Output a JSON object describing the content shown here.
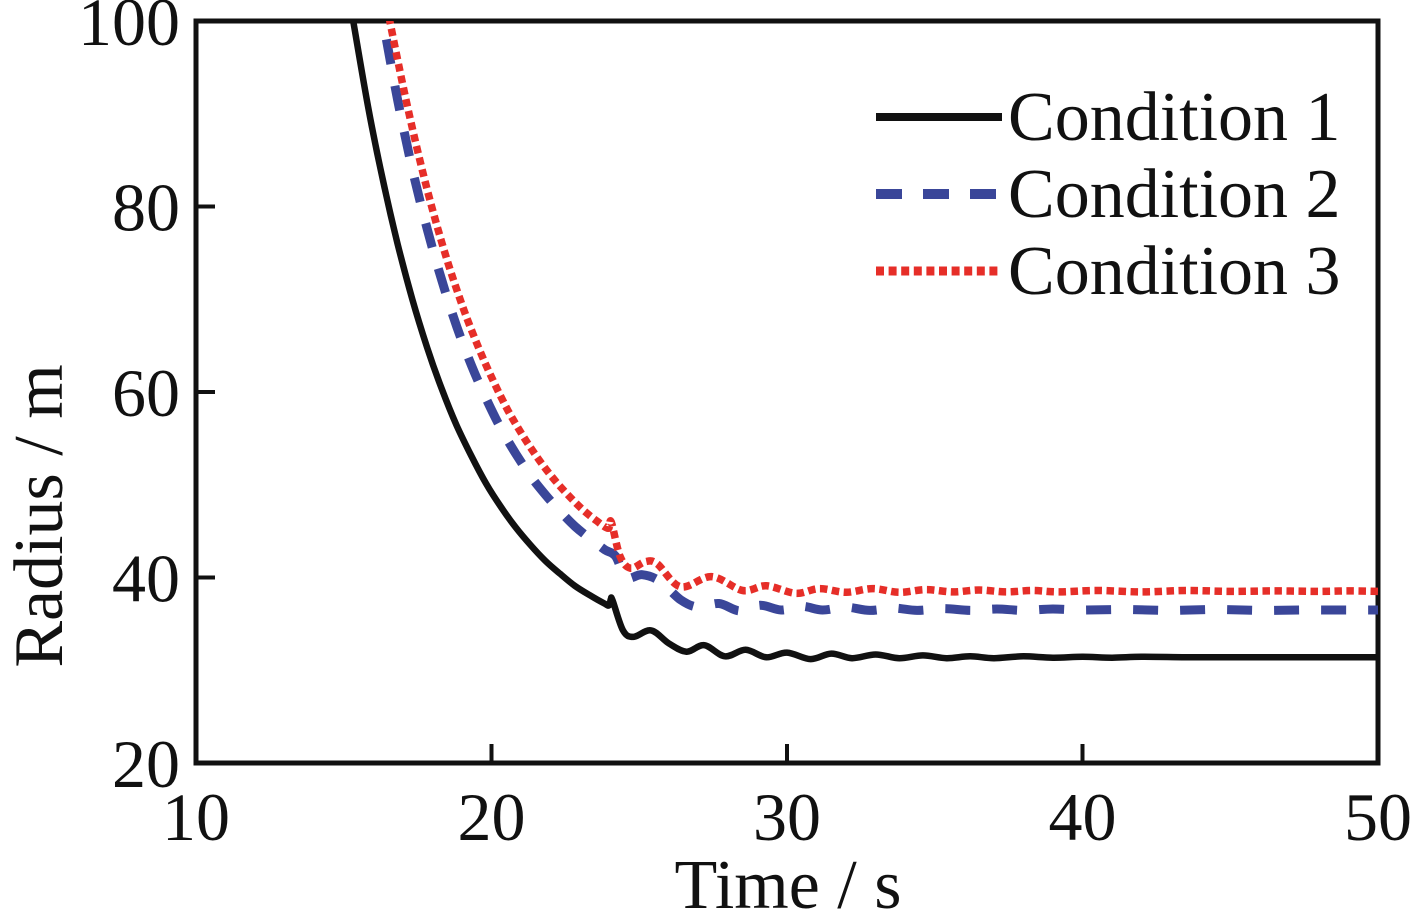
{
  "chart_data": {
    "type": "line",
    "title": "",
    "xlabel": "Time / s",
    "ylabel": "Radius / m",
    "xlim": [
      10,
      50
    ],
    "ylim": [
      20,
      100
    ],
    "xticks": [
      10,
      20,
      30,
      40,
      50
    ],
    "yticks": [
      20,
      40,
      60,
      80,
      100
    ],
    "grid": false,
    "legend_position": "top-right",
    "background_color": "#ffffff",
    "axis_color": "#111111",
    "series": [
      {
        "name": "Condition 1",
        "color": "#111111",
        "style": "solid",
        "settles_at": 31.4,
        "points": [
          [
            15.15,
            103
          ],
          [
            15.32,
            100
          ],
          [
            15.82,
            90.8
          ],
          [
            16.32,
            82.9
          ],
          [
            16.82,
            76.0
          ],
          [
            17.32,
            70.0
          ],
          [
            17.82,
            64.8
          ],
          [
            18.32,
            60.3
          ],
          [
            18.82,
            56.4
          ],
          [
            19.32,
            53.1
          ],
          [
            19.82,
            50.1
          ],
          [
            20.32,
            47.6
          ],
          [
            20.82,
            45.4
          ],
          [
            21.32,
            43.5
          ],
          [
            21.82,
            41.8
          ],
          [
            22.32,
            40.4
          ],
          [
            22.82,
            39.1
          ],
          [
            23.32,
            38.1
          ],
          [
            23.82,
            37.2
          ],
          [
            23.98,
            37.0
          ],
          [
            24.04,
            37.7
          ],
          [
            24.1,
            37.5
          ],
          [
            24.45,
            34.3
          ],
          [
            24.8,
            33.6
          ],
          [
            25.4,
            34.3
          ],
          [
            26.0,
            32.9
          ],
          [
            26.6,
            32.0
          ],
          [
            27.2,
            32.7
          ],
          [
            27.9,
            31.5
          ],
          [
            28.6,
            32.2
          ],
          [
            29.3,
            31.4
          ],
          [
            30.0,
            31.9
          ],
          [
            30.8,
            31.2
          ],
          [
            31.5,
            31.8
          ],
          [
            32.2,
            31.3
          ],
          [
            33.0,
            31.7
          ],
          [
            33.8,
            31.3
          ],
          [
            34.6,
            31.6
          ],
          [
            35.4,
            31.3
          ],
          [
            36.2,
            31.5
          ],
          [
            37.0,
            31.3
          ],
          [
            38.0,
            31.5
          ],
          [
            39.0,
            31.35
          ],
          [
            40.0,
            31.45
          ],
          [
            41.0,
            31.35
          ],
          [
            42.0,
            31.45
          ],
          [
            43.5,
            31.4
          ],
          [
            45.0,
            31.4
          ],
          [
            46.5,
            31.4
          ],
          [
            48.0,
            31.4
          ],
          [
            50.0,
            31.4
          ]
        ]
      },
      {
        "name": "Condition 2",
        "color": "#3a4699",
        "style": "dashed",
        "settles_at": 36.5,
        "points": [
          [
            16.17,
            103
          ],
          [
            16.33,
            100
          ],
          [
            16.83,
            91.4
          ],
          [
            17.33,
            83.9
          ],
          [
            17.83,
            77.5
          ],
          [
            18.33,
            71.9
          ],
          [
            18.83,
            67.0
          ],
          [
            19.33,
            62.8
          ],
          [
            19.83,
            59.2
          ],
          [
            20.33,
            56.0
          ],
          [
            20.83,
            53.3
          ],
          [
            21.33,
            50.9
          ],
          [
            21.83,
            48.9
          ],
          [
            22.33,
            47.1
          ],
          [
            22.83,
            45.5
          ],
          [
            23.33,
            44.2
          ],
          [
            23.83,
            43.0
          ],
          [
            24.2,
            42.3
          ],
          [
            24.55,
            40.0
          ],
          [
            25.1,
            40.3
          ],
          [
            25.7,
            39.6
          ],
          [
            26.4,
            37.6
          ],
          [
            27.0,
            36.8
          ],
          [
            27.7,
            37.2
          ],
          [
            28.4,
            36.4
          ],
          [
            29.1,
            37.0
          ],
          [
            29.8,
            36.5
          ],
          [
            30.5,
            36.9
          ],
          [
            31.2,
            36.5
          ],
          [
            32.0,
            36.8
          ],
          [
            32.8,
            36.45
          ],
          [
            33.6,
            36.7
          ],
          [
            34.4,
            36.45
          ],
          [
            35.3,
            36.65
          ],
          [
            36.2,
            36.45
          ],
          [
            37.1,
            36.6
          ],
          [
            38.0,
            36.45
          ],
          [
            39.0,
            36.6
          ],
          [
            40.0,
            36.5
          ],
          [
            41.5,
            36.55
          ],
          [
            43.0,
            36.45
          ],
          [
            44.5,
            36.55
          ],
          [
            46.0,
            36.45
          ],
          [
            47.5,
            36.5
          ],
          [
            49.0,
            36.5
          ],
          [
            50.0,
            36.5
          ]
        ]
      },
      {
        "name": "Condition 3",
        "color": "#e62e28",
        "style": "dotted",
        "settles_at": 38.5,
        "points": [
          [
            16.4,
            103
          ],
          [
            16.56,
            100
          ],
          [
            17.06,
            92.2
          ],
          [
            17.56,
            85.2
          ],
          [
            18.06,
            79.0
          ],
          [
            18.56,
            73.6
          ],
          [
            19.06,
            68.9
          ],
          [
            19.56,
            64.8
          ],
          [
            20.06,
            61.2
          ],
          [
            20.56,
            58.0
          ],
          [
            21.06,
            55.3
          ],
          [
            21.56,
            52.9
          ],
          [
            22.06,
            50.8
          ],
          [
            22.56,
            49.0
          ],
          [
            23.06,
            47.4
          ],
          [
            23.56,
            46.1
          ],
          [
            23.95,
            45.3
          ],
          [
            24.05,
            46.0
          ],
          [
            24.35,
            42.3
          ],
          [
            24.7,
            41.0
          ],
          [
            25.2,
            41.7
          ],
          [
            25.6,
            41.5
          ],
          [
            26.4,
            39.0
          ],
          [
            27.45,
            40.1
          ],
          [
            28.5,
            38.6
          ],
          [
            29.3,
            39.1
          ],
          [
            30.3,
            38.3
          ],
          [
            31.1,
            38.8
          ],
          [
            32.0,
            38.4
          ],
          [
            32.9,
            38.8
          ],
          [
            33.8,
            38.4
          ],
          [
            34.7,
            38.7
          ],
          [
            35.6,
            38.45
          ],
          [
            36.5,
            38.65
          ],
          [
            37.4,
            38.45
          ],
          [
            38.3,
            38.6
          ],
          [
            39.2,
            38.45
          ],
          [
            40.5,
            38.6
          ],
          [
            42.0,
            38.45
          ],
          [
            43.5,
            38.6
          ],
          [
            45.0,
            38.5
          ],
          [
            46.5,
            38.55
          ],
          [
            48.0,
            38.5
          ],
          [
            49.0,
            38.55
          ],
          [
            50.0,
            38.5
          ]
        ]
      }
    ]
  }
}
